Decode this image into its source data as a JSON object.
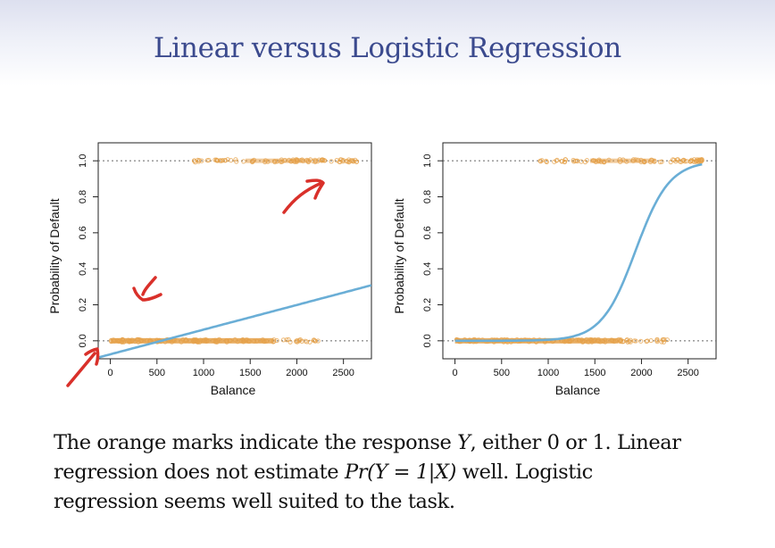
{
  "slide": {
    "title": "Linear versus Logistic Regression"
  },
  "caption": {
    "line1_a": "The orange marks indicate the response ",
    "line1_var": "Y",
    "line1_b": ", either 0 or 1. Linear",
    "line2_a": "regression does not estimate ",
    "line2_math": "Pr(Y = 1|X)",
    "line2_b": " well. Logistic",
    "line3": "regression seems well suited to the task."
  },
  "colors": {
    "title": "#3b4a8e",
    "curve": "#6aaed6",
    "marks": "#e5a14a",
    "annotation": "#d9302a"
  },
  "chart_data": [
    {
      "type": "scatter",
      "name": "linear",
      "xlabel": "Balance",
      "ylabel": "Probability of Default",
      "xlim": [
        -130,
        2800
      ],
      "ylim": [
        -0.1,
        1.1
      ],
      "xticks": [
        0,
        500,
        1000,
        1500,
        2000,
        2500
      ],
      "xtick_labels": [
        "0",
        "500",
        "1000",
        "1500",
        "2000",
        "2500"
      ],
      "yticks": [
        0.0,
        0.2,
        0.4,
        0.6,
        0.8,
        1.0
      ],
      "ytick_labels": [
        "0.0",
        "0.2",
        "0.4",
        "0.6",
        "0.8",
        "1.0"
      ],
      "marks_y0": {
        "range": [
          0,
          2300
        ]
      },
      "marks_y1": {
        "range": [
          900,
          2650
        ]
      },
      "fit": {
        "kind": "linear",
        "intercept": -0.075,
        "slope": 0.000137,
        "x_range": [
          -130,
          2800
        ]
      },
      "annotations": [
        "arrow",
        "arrow",
        "arrow"
      ]
    },
    {
      "type": "scatter",
      "name": "logistic",
      "xlabel": "Balance",
      "ylabel": "Probability of Default",
      "xlim": [
        -130,
        2800
      ],
      "ylim": [
        -0.1,
        1.1
      ],
      "xticks": [
        0,
        500,
        1000,
        1500,
        2000,
        2500
      ],
      "xtick_labels": [
        "0",
        "500",
        "1000",
        "1500",
        "2000",
        "2500"
      ],
      "yticks": [
        0.0,
        0.2,
        0.4,
        0.6,
        0.8,
        1.0
      ],
      "ytick_labels": [
        "0.0",
        "0.2",
        "0.4",
        "0.6",
        "0.8",
        "1.0"
      ],
      "marks_y0": {
        "range": [
          0,
          2300
        ]
      },
      "marks_y1": {
        "range": [
          900,
          2650
        ]
      },
      "fit": {
        "kind": "logistic",
        "b0": -10.65,
        "b1": 0.0055,
        "x_range": [
          0,
          2650
        ]
      }
    }
  ]
}
